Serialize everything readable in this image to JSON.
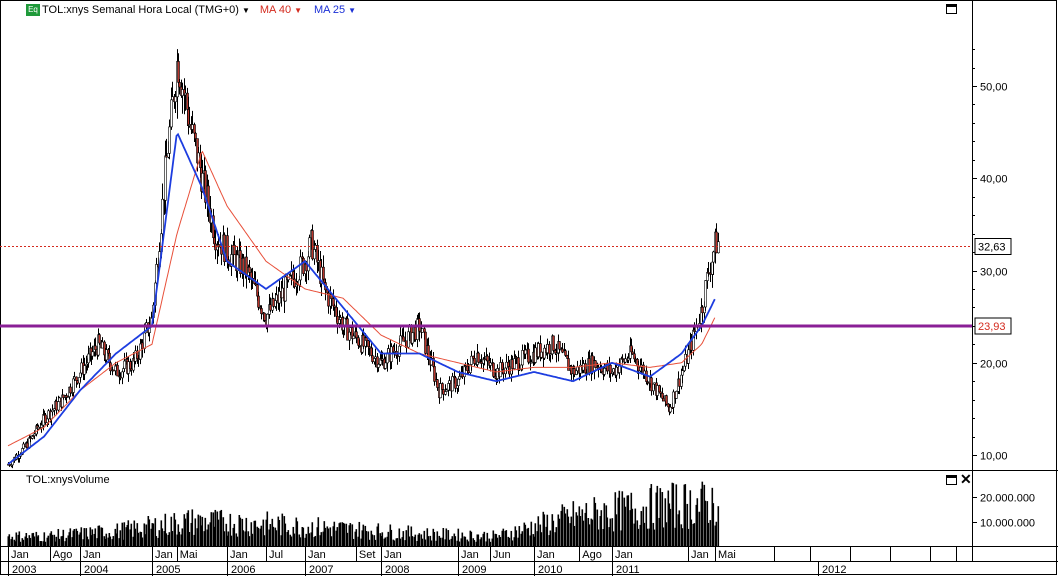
{
  "legend": {
    "badge": "Eq",
    "title": "TOL:xnys Semanal Hora Local (TMG+0)",
    "ma40": "MA 40",
    "ma25": "MA 25"
  },
  "volume_panel": {
    "title": "TOL:xnysVolume",
    "close_icon": "close-icon"
  },
  "price_markers": {
    "last": "32,63",
    "line": "23,93"
  },
  "colors": {
    "price_up": "#ffffff",
    "price_down": "#b8332a",
    "ma40": "#e8503a",
    "ma25": "#1d3de0",
    "h_line": "#8a1f96",
    "last_line": "#d42a1e"
  },
  "chart_data": [
    {
      "type": "candlestick",
      "title": "TOL:xnys Semanal Hora Local (TMG+0)",
      "y_ticks": [
        "10,00",
        "20,00",
        "30,00",
        "40,00",
        "50,00"
      ],
      "ylim": [
        8,
        58
      ],
      "x_month_labels": [
        "Jan",
        "Ago",
        "Jan",
        "Jan",
        "Mai",
        "Jan",
        "Jul",
        "Jan",
        "Set",
        "Jan",
        "Jan",
        "Jun",
        "Jan",
        "Ago",
        "Jan",
        "Jan",
        "Mai"
      ],
      "x_year_labels": [
        "2003",
        "2004",
        "2005",
        "2006",
        "2007",
        "2008",
        "2009",
        "2010",
        "2011",
        "2012"
      ],
      "series": [
        {
          "name": "TOL:xnys",
          "x": [
            "2003-01",
            "2003-04",
            "2003-07",
            "2003-10",
            "2004-01",
            "2004-04",
            "2004-07",
            "2004-10",
            "2005-01",
            "2005-03",
            "2005-05",
            "2005-07",
            "2005-09",
            "2005-11",
            "2006-01",
            "2006-04",
            "2006-07",
            "2006-10",
            "2007-01",
            "2007-02",
            "2007-04",
            "2007-07",
            "2007-10",
            "2008-01",
            "2008-04",
            "2008-07",
            "2008-10",
            "2009-01",
            "2009-04",
            "2009-07",
            "2009-10",
            "2010-01",
            "2010-04",
            "2010-07",
            "2010-10",
            "2011-01",
            "2011-04",
            "2011-07",
            "2011-10",
            "2011-12",
            "2012-01",
            "2012-03",
            "2012-04",
            "2012-05"
          ],
          "close": [
            9,
            11,
            14,
            16,
            19,
            22,
            19,
            20,
            25,
            40,
            53,
            46,
            40,
            34,
            32,
            30,
            25,
            28,
            31,
            33,
            28,
            24,
            22,
            20,
            22,
            24,
            17,
            18,
            21,
            19,
            20,
            21,
            22,
            19,
            20,
            19,
            21,
            18,
            15,
            19,
            21,
            26,
            30,
            33
          ]
        },
        {
          "name": "MA 40",
          "x": [
            "2003-01",
            "2003-07",
            "2004-01",
            "2004-07",
            "2005-01",
            "2005-05",
            "2005-09",
            "2006-01",
            "2006-07",
            "2007-01",
            "2007-07",
            "2008-01",
            "2008-07",
            "2009-01",
            "2009-07",
            "2010-01",
            "2010-07",
            "2011-01",
            "2011-07",
            "2011-12",
            "2012-03",
            "2012-05"
          ],
          "values": [
            11,
            13,
            17,
            20,
            22,
            34,
            43,
            37,
            31,
            28,
            27,
            23,
            21,
            20,
            19,
            19.5,
            19.5,
            20,
            19.5,
            20,
            22,
            25
          ]
        },
        {
          "name": "MA 25",
          "x": [
            "2003-01",
            "2003-07",
            "2004-01",
            "2004-07",
            "2005-01",
            "2005-05",
            "2005-09",
            "2006-01",
            "2006-07",
            "2007-01",
            "2007-07",
            "2008-01",
            "2008-07",
            "2009-01",
            "2009-07",
            "2010-01",
            "2010-07",
            "2011-01",
            "2011-07",
            "2011-12",
            "2012-03",
            "2012-05"
          ],
          "values": [
            9,
            12,
            17,
            21,
            24,
            45,
            39,
            31,
            28,
            31,
            26,
            21,
            21,
            19,
            18,
            19,
            18,
            20,
            18.5,
            21,
            24,
            27
          ]
        }
      ],
      "annotations": [
        {
          "label": "32,63",
          "value": 32.63,
          "style": "dotted"
        },
        {
          "label": "23,93",
          "value": 23.93,
          "style": "solid"
        }
      ]
    },
    {
      "type": "bar",
      "title": "TOL:xnysVolume",
      "y_ticks": [
        "10.000.000",
        "20.000.000"
      ],
      "ylim": [
        0,
        28000000
      ],
      "values_in_millions_by_year": {
        "2003": 4,
        "2004": 6,
        "2005": 10,
        "2006": 9,
        "2007": 7,
        "2008": 5,
        "2009": 4,
        "2010": 12,
        "2011": 16,
        "2012": 18
      }
    }
  ]
}
